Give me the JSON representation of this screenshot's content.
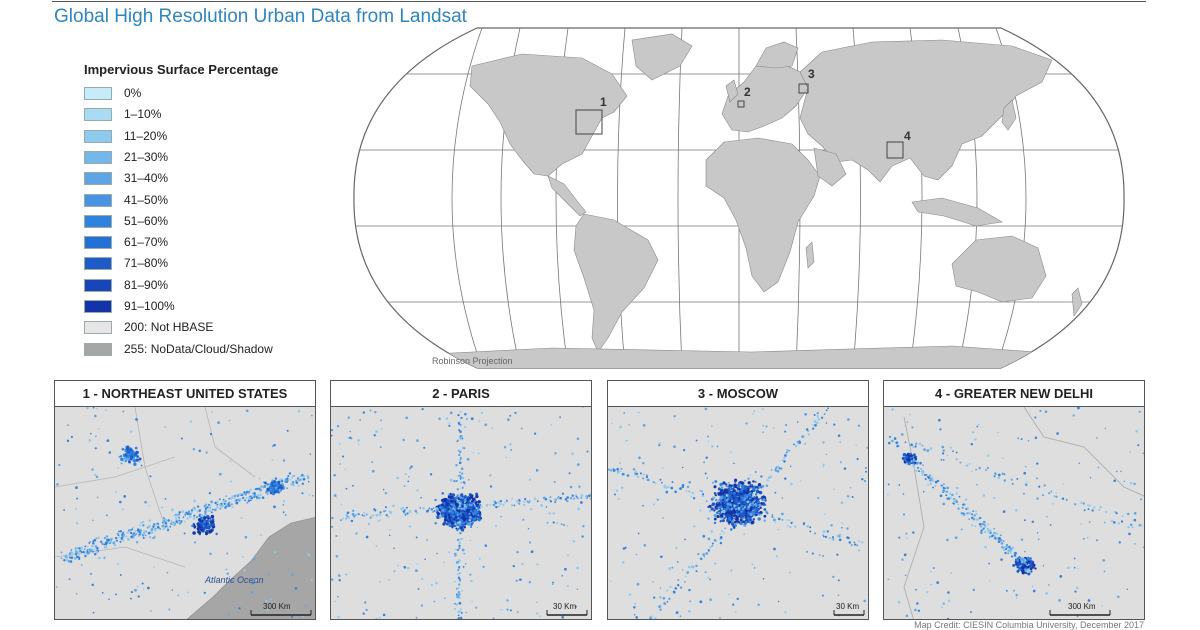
{
  "title": "Global High Resolution Urban Data from Landsat",
  "legend": {
    "title": "Impervious Surface Percentage",
    "items": [
      {
        "label": "0%",
        "color": "#c6ecfa"
      },
      {
        "label": "1–10%",
        "color": "#a9dcf3"
      },
      {
        "label": "11–20%",
        "color": "#8ccaee"
      },
      {
        "label": "21–30%",
        "color": "#74b7ea"
      },
      {
        "label": "31–40%",
        "color": "#5ea5e6"
      },
      {
        "label": "41–50%",
        "color": "#4894e3"
      },
      {
        "label": "51–60%",
        "color": "#2f82de"
      },
      {
        "label": "61–70%",
        "color": "#2370d6"
      },
      {
        "label": "71–80%",
        "color": "#1c5bc8"
      },
      {
        "label": "81–90%",
        "color": "#1846b8"
      },
      {
        "label": "91–100%",
        "color": "#1533a8"
      },
      {
        "label": "200: Not HBASE",
        "color": "#e6e6e6"
      },
      {
        "label": "255: NoData/Cloud/Shadow",
        "color": "#a6a6a6"
      }
    ]
  },
  "map": {
    "projection_label": "Robinson Projection",
    "regions": [
      {
        "number": "1"
      },
      {
        "number": "2"
      },
      {
        "number": "3"
      },
      {
        "number": "4"
      }
    ]
  },
  "insets": [
    {
      "title": "1  -  NORTHEAST UNITED STATES",
      "scale": "300 Km",
      "ocean_label": "Atlantic Ocean"
    },
    {
      "title": "2  -  PARIS",
      "scale": "30 Km"
    },
    {
      "title": "3  -  MOSCOW",
      "scale": "30 Km"
    },
    {
      "title": "4  -  GREATER NEW DELHI",
      "scale": "300 Km"
    }
  ],
  "credit": "Map Credit: CIESIN Columbia University, December 2017"
}
